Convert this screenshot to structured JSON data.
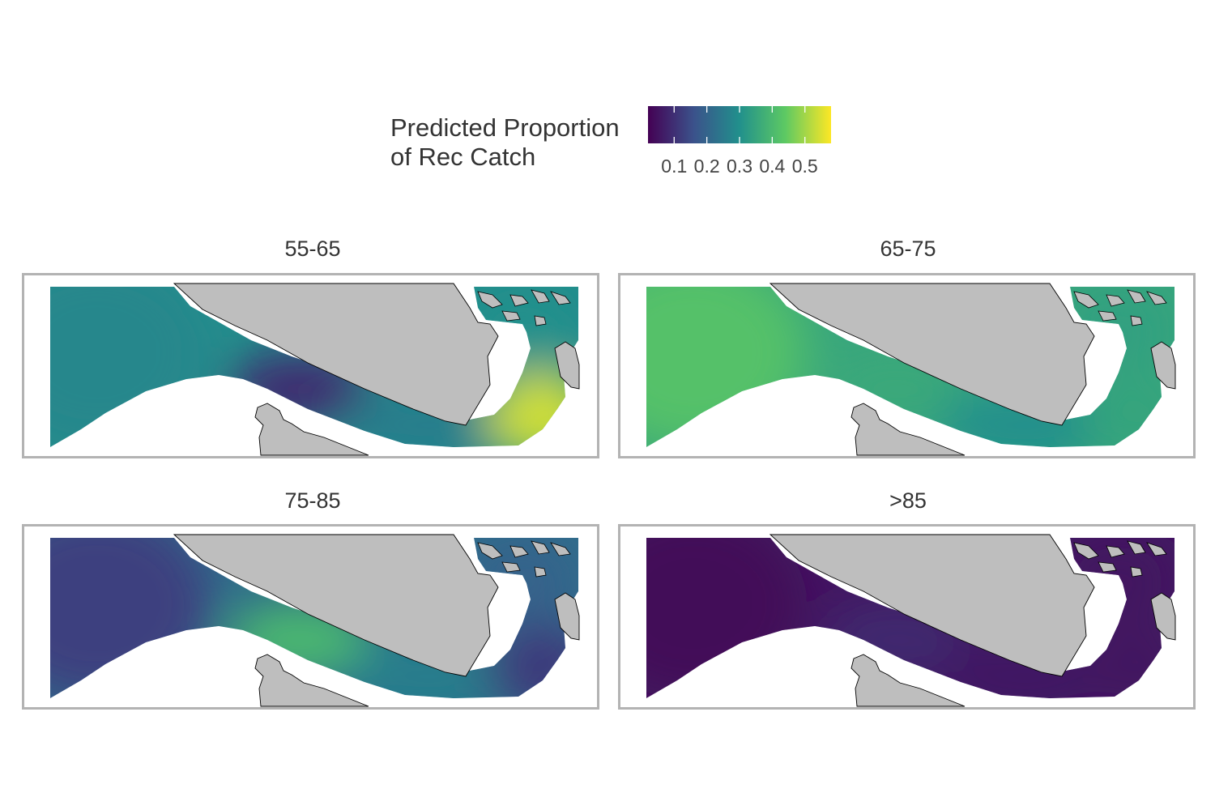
{
  "legend": {
    "title_line1": "Predicted Proportion",
    "title_line2": "of Rec Catch",
    "ticks": [
      "0.1",
      "0.2",
      "0.3",
      "0.4",
      "0.5"
    ],
    "tick_values": [
      0.1,
      0.2,
      0.3,
      0.4,
      0.5
    ],
    "range": [
      0.02,
      0.58
    ],
    "palette": [
      "#440154",
      "#3b528b",
      "#21908c",
      "#5dc963",
      "#fde725"
    ],
    "land_color": "#bebebe"
  },
  "facets": [
    {
      "label": "55-65",
      "zones": {
        "ocean": 0.28,
        "strait": 0.09,
        "inner": 0.26,
        "islands": 0.3,
        "tip": 0.54
      }
    },
    {
      "label": "65-75",
      "zones": {
        "ocean": 0.42,
        "strait": 0.36,
        "inner": 0.3,
        "islands": 0.34,
        "tip": 0.35
      }
    },
    {
      "label": "75-85",
      "zones": {
        "ocean": 0.13,
        "strait": 0.4,
        "inner": 0.26,
        "islands": 0.2,
        "tip": 0.12
      }
    },
    {
      "label": ">85",
      "zones": {
        "ocean": 0.03,
        "strait": 0.09,
        "inner": 0.06,
        "islands": 0.05,
        "tip": 0.05
      }
    }
  ]
}
